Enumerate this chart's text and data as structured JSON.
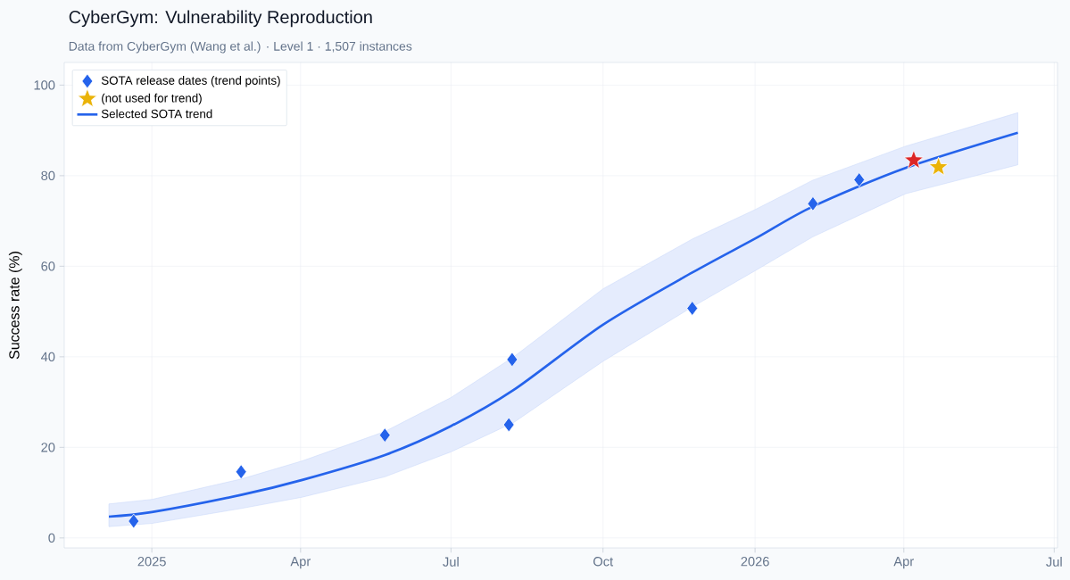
{
  "chart_data": {
    "type": "scatter",
    "title": "CyberGym: Vulnerability Reproduction",
    "subtitle": "Data from CyberGym (Wang et al.) · Level 1 · 1,507 instances",
    "ylabel": "Success rate (%)",
    "xlim": [
      "2024-11-09",
      "2026-07-03"
    ],
    "ylim": [
      -2.2,
      105
    ],
    "xticks": [
      {
        "value": "2025-01-01",
        "label": "2025"
      },
      {
        "value": "2025-04-01",
        "label": "Apr"
      },
      {
        "value": "2025-07-01",
        "label": "Jul"
      },
      {
        "value": "2025-10-01",
        "label": "Oct"
      },
      {
        "value": "2026-01-01",
        "label": "2026"
      },
      {
        "value": "2026-04-01",
        "label": "Apr"
      },
      {
        "value": "2026-07-01",
        "label": "Jul"
      }
    ],
    "yticks": [
      0,
      20,
      40,
      60,
      80,
      100
    ],
    "grid": true,
    "legend": "top left",
    "series": [
      {
        "name": "SOTA release dates (trend points)",
        "marker": "diamond",
        "color": "#2563eb",
        "x": [
          "2024-12-21",
          "2025-02-24",
          "2025-05-22",
          "2025-08-07",
          "2025-08-05",
          "2025-11-24",
          "2026-02-05",
          "2026-03-05"
        ],
        "values": [
          3.7,
          14.6,
          22.7,
          39.4,
          25.0,
          50.7,
          73.8,
          79.1
        ]
      },
      {
        "name": "(not used for trend)",
        "marker": "star",
        "color": "#eab308",
        "x": [
          "2026-04-22"
        ],
        "values": [
          81.9
        ]
      },
      {
        "marker": "star",
        "color": "#dc2626",
        "x": [
          "2026-04-07"
        ],
        "values": [
          83.4
        ]
      },
      {
        "name": "Selected SOTA trend",
        "type": "line",
        "marker": "none",
        "color": "#2563eb",
        "x": [
          "2024-12-06",
          "2025-01-01",
          "2025-02-24",
          "2025-04-02",
          "2025-05-22",
          "2025-07-01",
          "2025-08-08",
          "2025-10-01",
          "2025-11-24",
          "2026-01-01",
          "2026-02-05",
          "2026-04-02",
          "2026-06-09"
        ],
        "values": [
          4.7,
          5.7,
          9.5,
          12.8,
          18.3,
          24.7,
          32.7,
          47.1,
          58.6,
          66.1,
          73.2,
          81.7,
          89.5
        ],
        "lower": [
          2.5,
          3.2,
          6.5,
          9.0,
          13.5,
          19.0,
          25.5,
          39.0,
          51.0,
          59.0,
          66.5,
          76.0,
          82.4
        ],
        "upper": [
          7.5,
          8.5,
          13.0,
          17.0,
          23.5,
          31.0,
          40.0,
          55.0,
          66.0,
          72.5,
          79.0,
          86.5,
          93.9
        ]
      }
    ]
  }
}
